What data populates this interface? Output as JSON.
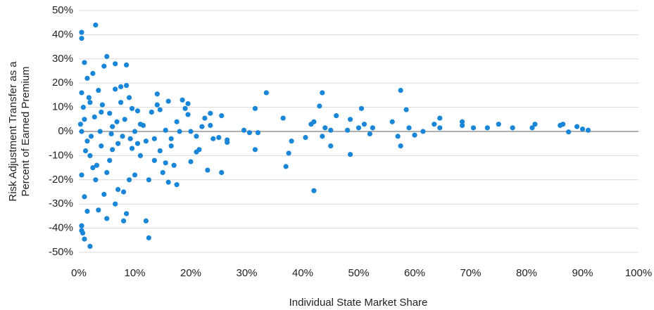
{
  "chart_data": {
    "type": "scatter",
    "x_label": "Individual State Market Share",
    "y_label": [
      "Risk Adjustment Transfer as a",
      "Percent of Earned Premium"
    ],
    "xlim": [
      0,
      100
    ],
    "xticks": [
      {
        "value": 0,
        "label": "0%"
      },
      {
        "value": 10,
        "label": "10%"
      },
      {
        "value": 20,
        "label": "20%"
      },
      {
        "value": 30,
        "label": "30%"
      },
      {
        "value": 40,
        "label": "40%"
      },
      {
        "value": 50,
        "label": "50%"
      },
      {
        "value": 60,
        "label": "60%"
      },
      {
        "value": 70,
        "label": "70%"
      },
      {
        "value": 80,
        "label": "80%"
      },
      {
        "value": 90,
        "label": "90%"
      },
      {
        "value": 100,
        "label": "100%"
      }
    ],
    "ylim": [
      -50,
      50
    ],
    "yticks": [
      {
        "value": -50,
        "label": "-50%"
      },
      {
        "value": -40,
        "label": "-40%"
      },
      {
        "value": -30,
        "label": "-30%"
      },
      {
        "value": -20,
        "label": "-20%"
      },
      {
        "value": -10,
        "label": "-10%"
      },
      {
        "value": 0,
        "label": "0%"
      },
      {
        "value": 10,
        "label": "10%"
      },
      {
        "value": 20,
        "label": "20%"
      },
      {
        "value": 30,
        "label": "30%"
      },
      {
        "value": 40,
        "label": "40%"
      },
      {
        "value": 50,
        "label": "50%"
      }
    ],
    "grid": true,
    "series": [
      {
        "color": "#1a86d8",
        "x": [
          91,
          90,
          89,
          87.5,
          86.5,
          86,
          81.5,
          81,
          77.5,
          75,
          73,
          70.5,
          68.5,
          68.5,
          64.5,
          64.5,
          63.5,
          61.5,
          60,
          59,
          58.5,
          57.5,
          57.5,
          57,
          56,
          52.5,
          52,
          51,
          50.5,
          50,
          48.5,
          48.5,
          48,
          46,
          45,
          45,
          44,
          43.5,
          43.5,
          43,
          42,
          42,
          41.5,
          40.5,
          38,
          37.5,
          37,
          36.5,
          33.5,
          32,
          31.5,
          31.5,
          30.5,
          29.5,
          26.5,
          26.5,
          25.5,
          25.5,
          25,
          24,
          23.5,
          23.5,
          23,
          22.5,
          22,
          21.5,
          21,
          21,
          20,
          20,
          19.5,
          19.5,
          19,
          18.5,
          18,
          17.5,
          17.5,
          17,
          16.5,
          16.5,
          16,
          16,
          15.5,
          15.5,
          15,
          14.5,
          14.5,
          14,
          14,
          13.5,
          13.5,
          13,
          12.5,
          12.5,
          12,
          12,
          11.5,
          11,
          11,
          10.5,
          10.5,
          10,
          10,
          9.5,
          9.5,
          9,
          9,
          8.5,
          8.5,
          8.5,
          8,
          8,
          7.5,
          7.5,
          7,
          7,
          6.5,
          6.5,
          6.5,
          6,
          6,
          5.5,
          5.5,
          5,
          5,
          5,
          4.5,
          4.5,
          4,
          4,
          3.5,
          3.5,
          3,
          3,
          2.5,
          2.5,
          2,
          2,
          2,
          1.5,
          1.5,
          1.5,
          1,
          1,
          1,
          1,
          0.7,
          0.5,
          0.5,
          0.5,
          0.5,
          0.5,
          0.5,
          0.5,
          0.3,
          0.8,
          1.2,
          1.8,
          2.2,
          2.8,
          3.2,
          3.8,
          4.2,
          5.8,
          6.8,
          7.8,
          8.2,
          9.2
        ],
        "values": [
          0.5,
          1,
          2,
          -0.2,
          3,
          2.5,
          3,
          1.5,
          1.5,
          3,
          1.5,
          1.5,
          4,
          2.5,
          5.5,
          1.5,
          3,
          0,
          -1.5,
          1.5,
          9,
          17,
          -6,
          -2,
          4,
          1.5,
          -1,
          3,
          9.5,
          1.5,
          -9.5,
          5,
          0.5,
          6.5,
          -6,
          0.5,
          1.5,
          16,
          -2,
          10.5,
          -24.5,
          4,
          3,
          -2.5,
          -4,
          -9,
          -14.5,
          5.5,
          16,
          -0.5,
          9.5,
          -7.5,
          -0.5,
          0.5,
          -3.5,
          -4.5,
          -17,
          6.5,
          -2.5,
          -3,
          2.5,
          7.5,
          -16,
          5.5,
          2,
          -7.5,
          -8.5,
          -2,
          0,
          -12.5,
          7,
          11.5,
          9.5,
          13,
          0,
          -22,
          4,
          -14,
          -6,
          -3,
          -21,
          12.5,
          0.5,
          -13,
          -17,
          -8,
          9,
          15.5,
          11,
          -12,
          -3,
          8,
          -44,
          -20,
          -37,
          -4,
          2.5,
          3,
          -10,
          8.5,
          -5,
          0,
          -18,
          9.5,
          -7,
          -20,
          14,
          -34,
          27.5,
          19,
          -25,
          -37,
          18.5,
          12,
          -24,
          -5,
          -30,
          17.5,
          28,
          2,
          -7.5,
          -12,
          7.5,
          31,
          -36,
          -17,
          27,
          -26,
          -6,
          8,
          -32.5,
          17,
          44,
          -20,
          -15,
          24,
          -47.5,
          -10,
          12,
          -33,
          22,
          -4,
          -44.5,
          -27,
          5,
          28.5,
          -42,
          41,
          38.5,
          -39,
          -41,
          0,
          16,
          -18,
          3,
          10,
          -8,
          14,
          -2,
          6,
          -14,
          0,
          11,
          -1,
          4,
          -2,
          5,
          -3
        ]
      }
    ]
  }
}
